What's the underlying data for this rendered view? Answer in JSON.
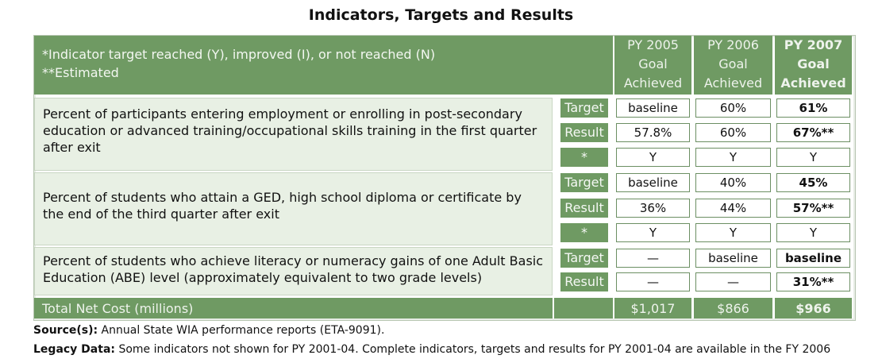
{
  "title": "Indicators, Targets and Results",
  "header": {
    "note1": "*Indicator target reached (Y), improved (I), or not  reached (N)",
    "note2": "**Estimated",
    "columns": [
      {
        "year": "PY 2005",
        "line2": "Goal",
        "line3": "Achieved"
      },
      {
        "year": "PY 2006",
        "line2": "Goal",
        "line3": "Achieved"
      },
      {
        "year": "PY 2007",
        "line2": "Goal",
        "line3": "Achieved"
      }
    ]
  },
  "indicators": [
    {
      "description": "Percent of participants entering employment or enrolling in post-secondary education or advanced training/occupational skills training in the first quarter after exit",
      "rows": [
        {
          "label": "Target",
          "values": [
            "baseline",
            "60%",
            "61%"
          ]
        },
        {
          "label": "Result",
          "values": [
            "57.8%",
            "60%",
            "67%**"
          ]
        },
        {
          "label": "*",
          "values": [
            "Y",
            "Y",
            "Y"
          ]
        }
      ]
    },
    {
      "description": "Percent of students who attain a GED, high school diploma or certificate by the end of the third quarter after exit",
      "rows": [
        {
          "label": "Target",
          "values": [
            "baseline",
            "40%",
            "45%"
          ]
        },
        {
          "label": "Result",
          "values": [
            "36%",
            "44%",
            "57%**"
          ]
        },
        {
          "label": "*",
          "values": [
            "Y",
            "Y",
            "Y"
          ]
        }
      ]
    },
    {
      "description": "Percent of students who achieve literacy or numeracy gains of one Adult Basic Education (ABE) level (approximately equivalent to two grade levels)",
      "rows": [
        {
          "label": "Target",
          "values": [
            "—",
            "baseline",
            "baseline"
          ]
        },
        {
          "label": "Result",
          "values": [
            "—",
            "—",
            "31%**"
          ]
        }
      ]
    }
  ],
  "total": {
    "label": "Total Net Cost (millions)",
    "values": [
      "$1,017",
      "$866",
      "$966"
    ]
  },
  "footer": {
    "source_label": "Source(s):",
    "source_text": " Annual State WIA performance reports (ETA-9091).",
    "legacy_label": "Legacy Data:",
    "legacy_text": "  Some indicators not shown for PY 2001-04.  Complete indicators, targets and results for PY 2001-04 are available in the FY 2006"
  }
}
